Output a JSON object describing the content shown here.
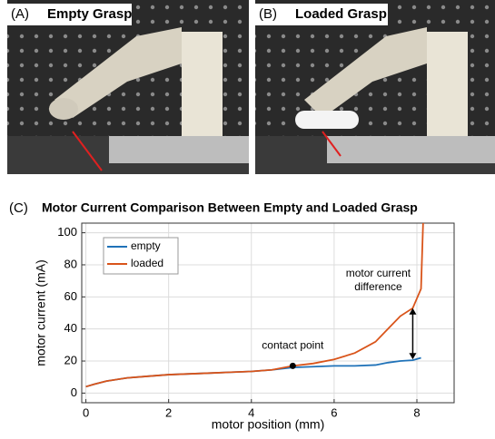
{
  "panels": [
    {
      "letter": "(A)",
      "label": "Empty Grasp"
    },
    {
      "letter": "(B)",
      "label": "Loaded Grasp"
    }
  ],
  "chart_data": {
    "type": "line",
    "panel": "(C)",
    "title": "Motor Current Comparison Between Empty and Loaded Grasp",
    "x_label": "motor position (mm)",
    "y_label": "motor current (mA)",
    "xlim": [
      -0.1,
      8.9
    ],
    "ylim": [
      -6,
      106
    ],
    "xticks": [
      0,
      2,
      4,
      6,
      8
    ],
    "yticks": [
      0,
      20,
      40,
      60,
      80,
      100
    ],
    "grid": true,
    "legend": "upper left",
    "series": [
      {
        "name": "empty",
        "color": "#1f72b8",
        "x": [
          0,
          0.2,
          0.5,
          1,
          1.5,
          2,
          2.5,
          3,
          3.5,
          4,
          4.5,
          5,
          5.5,
          6,
          6.5,
          7,
          7.3,
          7.6,
          7.9,
          8.1
        ],
        "values": [
          4,
          5.5,
          7.5,
          9.5,
          10.5,
          11.5,
          12,
          12.5,
          13,
          13.5,
          14.5,
          16,
          16.5,
          17,
          17,
          17.5,
          19,
          20,
          20.5,
          22
        ]
      },
      {
        "name": "loaded",
        "color": "#d9541a",
        "x": [
          0,
          0.2,
          0.5,
          1,
          1.5,
          2,
          2.5,
          3,
          3.5,
          4,
          4.5,
          5,
          5.5,
          6,
          6.5,
          7,
          7.3,
          7.6,
          7.9,
          8.1,
          8.15
        ],
        "values": [
          4,
          5.5,
          7.5,
          9.5,
          10.5,
          11.5,
          12,
          12.5,
          13,
          13.5,
          14.5,
          17,
          18.5,
          21,
          25,
          32,
          40,
          48,
          53,
          65,
          106
        ]
      }
    ],
    "annotations": [
      {
        "text": [
          "contact point"
        ],
        "x": 5,
        "y": 17
      },
      {
        "text": [
          "motor current",
          "difference"
        ],
        "x": 7.9,
        "y_from": 21,
        "y_to": 53
      }
    ]
  }
}
